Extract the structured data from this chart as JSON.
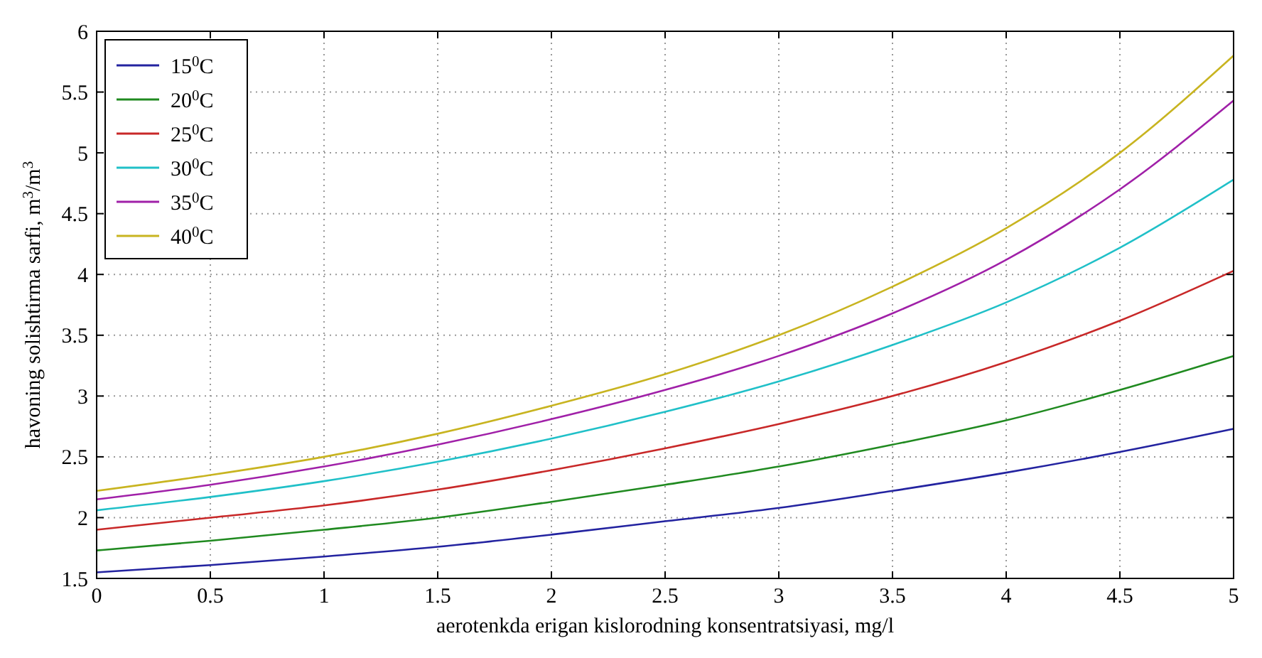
{
  "chart_data": {
    "type": "line",
    "xlabel": "aerotenkda erigan kislorodning konsentratsiyasi, mg/l",
    "ylabel": "havoning solishtirma sarfi, m$^{3}$/m$^{3}$",
    "x": [
      0,
      0.5,
      1,
      1.5,
      2,
      2.5,
      3,
      3.5,
      4,
      4.5,
      5
    ],
    "xlim": [
      0,
      5
    ],
    "xticks": [
      0,
      0.5,
      1,
      1.5,
      2,
      2.5,
      3,
      3.5,
      4,
      4.5,
      5
    ],
    "ylim": [
      1.5,
      6
    ],
    "yticks": [
      1.5,
      2,
      2.5,
      3,
      3.5,
      4,
      4.5,
      5,
      5.5,
      6
    ],
    "grid": true,
    "legend": "top left",
    "line_style": "solid",
    "marker": "none",
    "series": [
      {
        "name": "15$^{0}$C",
        "color": "#2323a0",
        "values": [
          1.55,
          1.61,
          1.68,
          1.76,
          1.86,
          1.97,
          2.08,
          2.22,
          2.37,
          2.54,
          2.73
        ]
      },
      {
        "name": "20$^{0}$C",
        "color": "#208a20",
        "values": [
          1.73,
          1.81,
          1.9,
          2.0,
          2.13,
          2.27,
          2.42,
          2.6,
          2.8,
          3.05,
          3.33
        ]
      },
      {
        "name": "25$^{0}$C",
        "color": "#c82828",
        "values": [
          1.9,
          2.0,
          2.1,
          2.23,
          2.39,
          2.57,
          2.77,
          3.0,
          3.28,
          3.62,
          4.03
        ]
      },
      {
        "name": "30$^{0}$C",
        "color": "#20c0c8",
        "values": [
          2.06,
          2.17,
          2.3,
          2.46,
          2.65,
          2.87,
          3.12,
          3.42,
          3.77,
          4.22,
          4.78
        ]
      },
      {
        "name": "35$^{0}$C",
        "color": "#a020a8",
        "values": [
          2.15,
          2.27,
          2.42,
          2.6,
          2.81,
          3.05,
          3.33,
          3.68,
          4.12,
          4.7,
          5.43
        ]
      },
      {
        "name": "40$^{0}$C",
        "color": "#c8b420",
        "values": [
          2.22,
          2.35,
          2.5,
          2.69,
          2.92,
          3.18,
          3.5,
          3.9,
          4.38,
          5.0,
          5.8
        ]
      }
    ]
  }
}
